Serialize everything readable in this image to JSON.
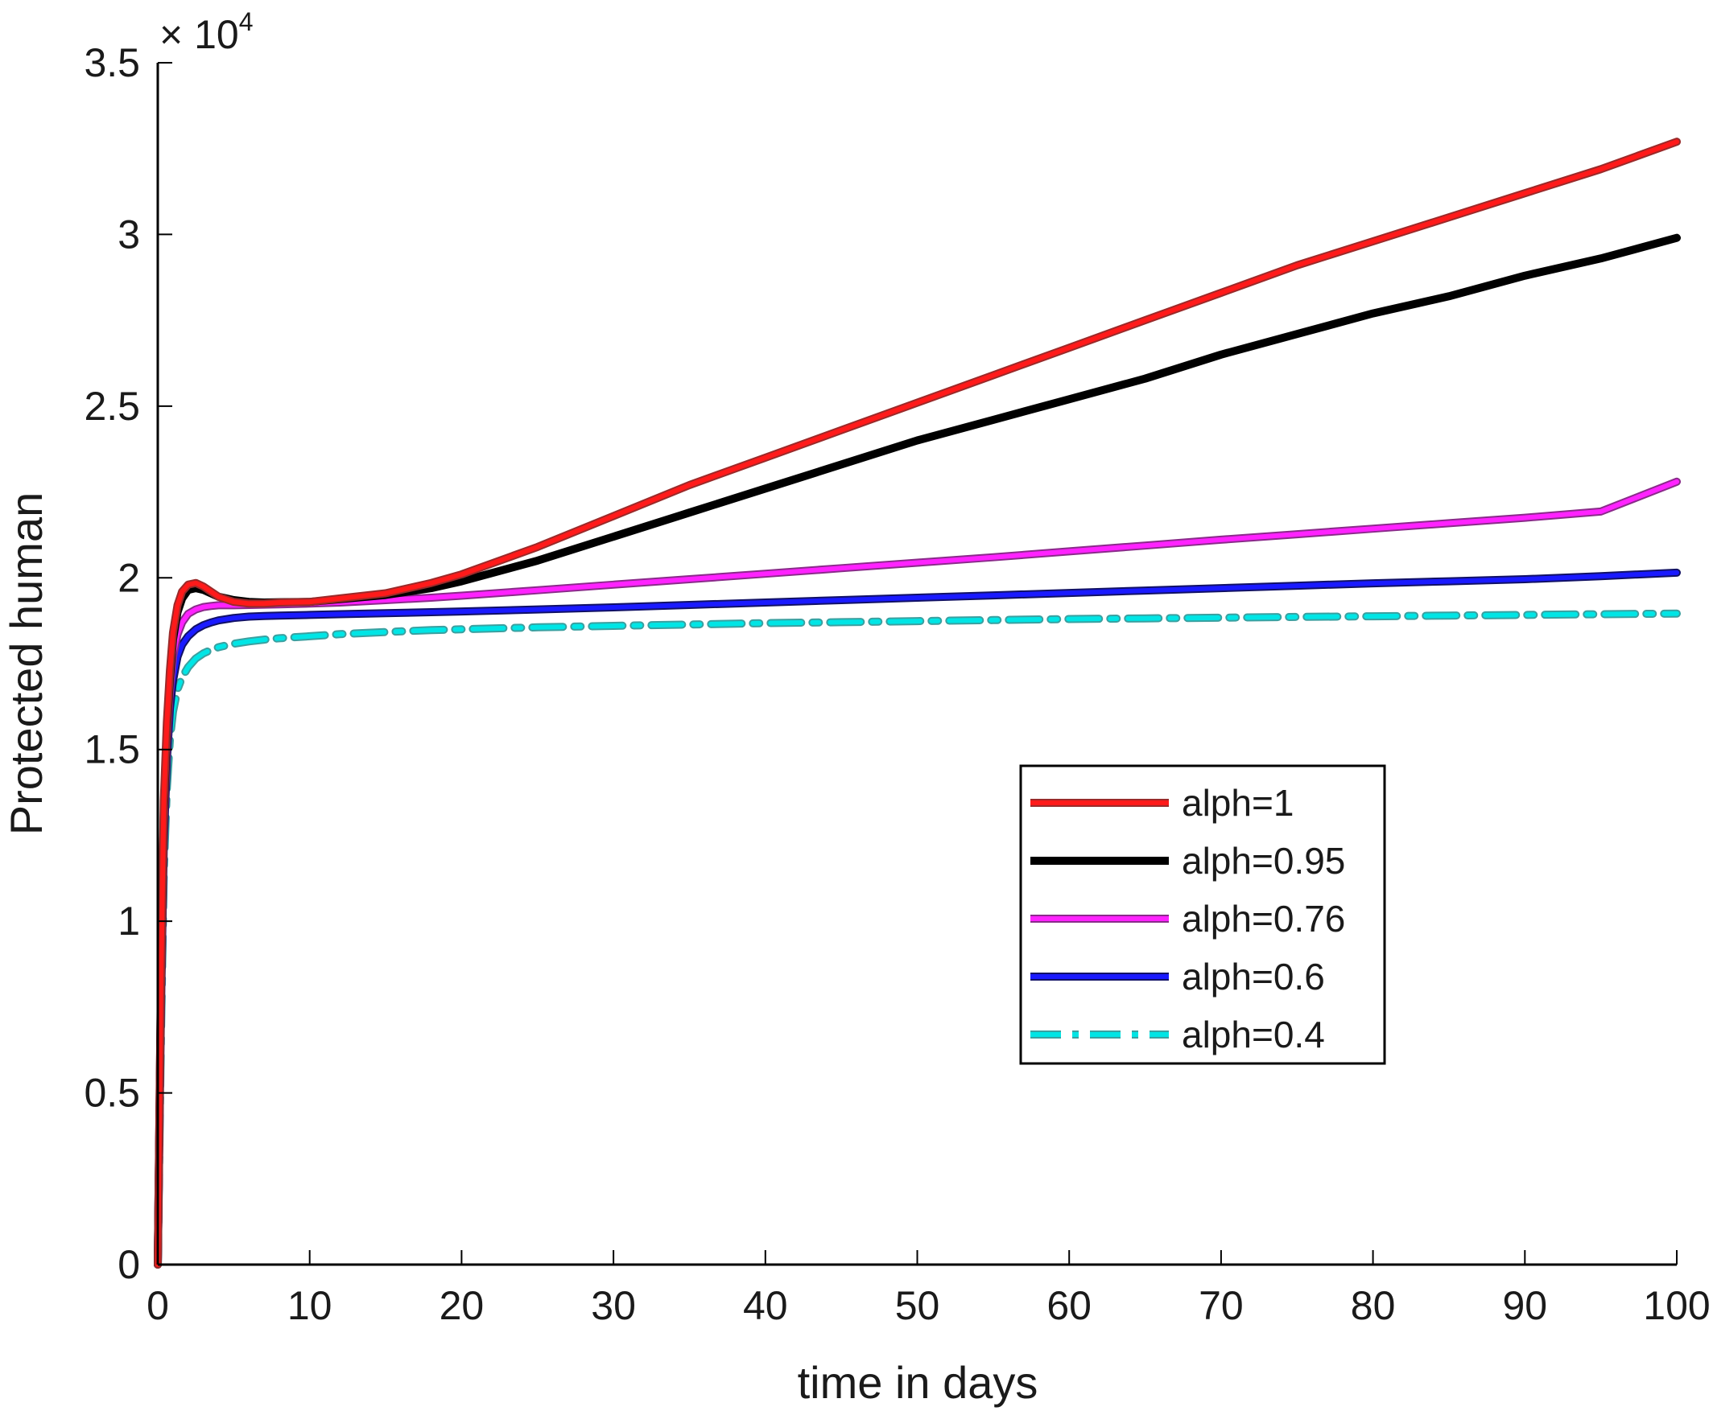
{
  "chart_data": {
    "type": "line",
    "title": "",
    "xlabel": "time in days",
    "ylabel": "Protected  human",
    "xlim": [
      0,
      100
    ],
    "ylim": [
      0,
      35000
    ],
    "y_exponent_label": "× 10",
    "y_exponent": "4",
    "x_ticks": [
      {
        "value": 0,
        "label": "0"
      },
      {
        "value": 10,
        "label": "10"
      },
      {
        "value": 20,
        "label": "20"
      },
      {
        "value": 30,
        "label": "30"
      },
      {
        "value": 40,
        "label": "40"
      },
      {
        "value": 50,
        "label": "50"
      },
      {
        "value": 60,
        "label": "60"
      },
      {
        "value": 70,
        "label": "70"
      },
      {
        "value": 80,
        "label": "80"
      },
      {
        "value": 90,
        "label": "90"
      },
      {
        "value": 100,
        "label": "100"
      }
    ],
    "y_ticks": [
      {
        "value": 0,
        "label": "0"
      },
      {
        "value": 5000,
        "label": "0.5"
      },
      {
        "value": 10000,
        "label": "1"
      },
      {
        "value": 15000,
        "label": "1.5"
      },
      {
        "value": 20000,
        "label": "2"
      },
      {
        "value": 25000,
        "label": "2.5"
      },
      {
        "value": 30000,
        "label": "3"
      },
      {
        "value": 35000,
        "label": "3.5"
      }
    ],
    "grid": false,
    "legend_position": "center-right",
    "series": [
      {
        "name": "alph=1",
        "color": "#ff1a1a",
        "edge_color": "#9a2a2a",
        "dash": "solid",
        "x": [
          0,
          0.2,
          0.4,
          0.6,
          0.8,
          1.0,
          1.3,
          1.6,
          2.0,
          2.5,
          3.0,
          3.5,
          4,
          5,
          6,
          7,
          8,
          10,
          12,
          15,
          18,
          20,
          25,
          30,
          35,
          40,
          45,
          50,
          55,
          60,
          65,
          70,
          75,
          80,
          85,
          90,
          95,
          100
        ],
        "y": [
          0,
          8000,
          13500,
          15800,
          17300,
          18400,
          19200,
          19600,
          19800,
          19850,
          19750,
          19600,
          19450,
          19300,
          19250,
          19250,
          19280,
          19300,
          19400,
          19550,
          19850,
          20100,
          20900,
          21800,
          22700,
          23500,
          24300,
          25100,
          25900,
          26700,
          27500,
          28300,
          29100,
          29800,
          30500,
          31200,
          31900,
          32700
        ]
      },
      {
        "name": "alph=0.95",
        "color": "#000000",
        "edge_color": "#000000",
        "dash": "solid",
        "x": [
          0,
          0.2,
          0.4,
          0.6,
          0.8,
          1.0,
          1.3,
          1.6,
          2.0,
          2.5,
          3.0,
          3.5,
          4,
          5,
          6,
          7,
          8,
          10,
          12,
          15,
          18,
          20,
          25,
          30,
          35,
          40,
          45,
          50,
          55,
          60,
          65,
          70,
          75,
          80,
          85,
          90,
          95,
          100
        ],
        "y": [
          0,
          7800,
          13200,
          15600,
          17100,
          18200,
          19000,
          19400,
          19650,
          19700,
          19650,
          19550,
          19450,
          19350,
          19300,
          19280,
          19290,
          19300,
          19380,
          19500,
          19700,
          19900,
          20500,
          21200,
          21900,
          22600,
          23300,
          24000,
          24600,
          25200,
          25800,
          26500,
          27100,
          27700,
          28200,
          28800,
          29300,
          29900
        ]
      },
      {
        "name": "alph=0.76",
        "color": "#ff22ff",
        "edge_color": "#8a2a8a",
        "dash": "solid",
        "x": [
          0,
          0.2,
          0.4,
          0.6,
          0.8,
          1.0,
          1.3,
          1.6,
          2.0,
          2.5,
          3.0,
          3.5,
          4,
          5,
          6,
          7,
          8,
          10,
          12,
          15,
          18,
          20,
          25,
          30,
          35,
          40,
          45,
          50,
          55,
          60,
          65,
          70,
          75,
          80,
          85,
          90,
          95,
          100
        ],
        "y": [
          0,
          7500,
          12800,
          15200,
          16700,
          17700,
          18350,
          18700,
          18950,
          19080,
          19150,
          19180,
          19200,
          19200,
          19210,
          19220,
          19230,
          19250,
          19280,
          19350,
          19420,
          19480,
          19640,
          19800,
          19960,
          20120,
          20280,
          20440,
          20600,
          20770,
          20940,
          21110,
          21270,
          21430,
          21590,
          21750,
          21930,
          22800
        ]
      },
      {
        "name": "alph=0.6",
        "color": "#1a1aff",
        "edge_color": "#111166",
        "dash": "solid",
        "x": [
          0,
          0.2,
          0.4,
          0.6,
          0.8,
          1.0,
          1.3,
          1.6,
          2.0,
          2.5,
          3.0,
          3.5,
          4,
          5,
          6,
          7,
          8,
          10,
          12,
          15,
          18,
          20,
          25,
          30,
          35,
          40,
          45,
          50,
          55,
          60,
          65,
          70,
          75,
          80,
          85,
          90,
          95,
          100
        ],
        "y": [
          0,
          7200,
          12300,
          14700,
          16200,
          17000,
          17700,
          18050,
          18300,
          18500,
          18620,
          18700,
          18760,
          18830,
          18870,
          18890,
          18900,
          18920,
          18940,
          18970,
          19000,
          19020,
          19080,
          19140,
          19210,
          19280,
          19350,
          19420,
          19490,
          19560,
          19630,
          19700,
          19770,
          19840,
          19900,
          19960,
          20050,
          20150
        ]
      },
      {
        "name": "alph=0.4",
        "color": "#00e5e5",
        "edge_color": "#3aa0a0",
        "dash": "dashdot",
        "x": [
          0,
          0.2,
          0.4,
          0.6,
          0.8,
          1.0,
          1.3,
          1.6,
          2.0,
          2.5,
          3.0,
          3.5,
          4,
          5,
          6,
          7,
          8,
          10,
          12,
          15,
          18,
          20,
          25,
          30,
          35,
          40,
          45,
          50,
          55,
          60,
          65,
          70,
          75,
          80,
          85,
          90,
          95,
          100
        ],
        "y": [
          0,
          6500,
          11500,
          13900,
          15300,
          16100,
          16750,
          17100,
          17400,
          17650,
          17800,
          17900,
          17980,
          18080,
          18150,
          18200,
          18240,
          18300,
          18360,
          18420,
          18480,
          18500,
          18560,
          18600,
          18640,
          18680,
          18710,
          18740,
          18770,
          18800,
          18820,
          18840,
          18860,
          18880,
          18900,
          18920,
          18940,
          18960
        ]
      }
    ]
  }
}
